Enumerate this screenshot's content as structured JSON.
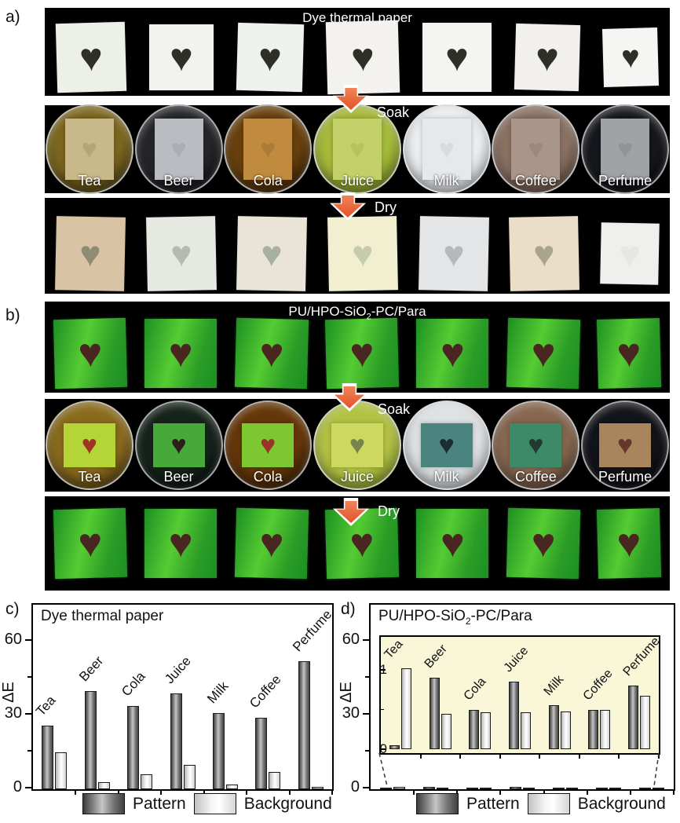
{
  "figure": {
    "panel_a": {
      "label": "a)",
      "title": "Dye thermal paper",
      "soak_label": "Soak",
      "dry_label": "Dry",
      "heart_color": "#2e3028",
      "initial_papers": [
        "#edf0e8",
        "#f2f3f1",
        "#eef2ee",
        "#f3f2ef",
        "#f4f4f2",
        "#f1f0ec",
        "#f5f5f3"
      ],
      "dishes": [
        {
          "label": "Tea",
          "liquid": "#7c671f",
          "liquid_dark": "#352b0c",
          "paper": "#c9b98a",
          "heart": "#b6a577"
        },
        {
          "label": "Beer",
          "liquid": "#26262a",
          "liquid_dark": "#0b0b0d",
          "paper": "#b9bcc0",
          "heart": "#aaadb2"
        },
        {
          "label": "Cola",
          "liquid": "#69400c",
          "liquid_dark": "#2a1804",
          "paper": "#c08b3e",
          "heart": "#ab7c37"
        },
        {
          "label": "Juice",
          "liquid": "#a6bb3a",
          "liquid_dark": "#687e1f",
          "paper": "#c3d06a",
          "heart": "#b4c45a"
        },
        {
          "label": "Milk",
          "liquid": "#eceef0",
          "liquid_dark": "#c6c9cd",
          "paper": "#e6e9ec",
          "heart": "#d8dcdf"
        },
        {
          "label": "Coffee",
          "liquid": "#8b7263",
          "liquid_dark": "#554237",
          "paper": "#a9958a",
          "heart": "#9b887e"
        },
        {
          "label": "Perfume",
          "liquid": "#17181d",
          "liquid_dark": "#050507",
          "paper": "#9fa3a6",
          "heart": "#90949a"
        }
      ],
      "dried_papers": [
        {
          "bg": "#d8c3a4",
          "heart": "#8f8c74"
        },
        {
          "bg": "#e6e8e2",
          "heart": "#b3bbb0"
        },
        {
          "bg": "#eae4d8",
          "heart": "#a8b0a2"
        },
        {
          "bg": "#f1efcf",
          "heart": "#c6cbae"
        },
        {
          "bg": "#e3e5e7",
          "heart": "#b4babc"
        },
        {
          "bg": "#eadec9",
          "heart": "#a9a48e"
        },
        {
          "bg": "#efefed",
          "heart": "#e6e6e4"
        }
      ]
    },
    "panel_b": {
      "label": "b)",
      "title_parts": [
        "PU/HPO-SiO",
        "2",
        "-PC/Para"
      ],
      "soak_label": "Soak",
      "dry_label": "Dry",
      "film_green_light": "#55cc33",
      "film_green_dark": "#1d8f22",
      "heart_color": "#4a2620",
      "dishes": [
        {
          "label": "Tea",
          "liquid": "#8a6b1e",
          "liquid_dark": "#3f300c",
          "film": "#b5d437",
          "heart": "#a03226"
        },
        {
          "label": "Beer",
          "liquid": "#16231a",
          "liquid_dark": "#060a07",
          "film": "#46a93a",
          "heart": "#2f1d1a"
        },
        {
          "label": "Cola",
          "liquid": "#653708",
          "liquid_dark": "#2a1603",
          "film": "#7dc832",
          "heart": "#9c3128"
        },
        {
          "label": "Juice",
          "liquid": "#b3c344",
          "liquid_dark": "#7d8f26",
          "film": "#ccd95e",
          "heart": "#76834c"
        },
        {
          "label": "Milk",
          "liquid": "#dfe2e4",
          "liquid_dark": "#b8bcc0",
          "film": "#49857e",
          "heart": "#1e2b30"
        },
        {
          "label": "Coffee",
          "liquid": "#876750",
          "liquid_dark": "#523d2e",
          "film": "#3c8a68",
          "heart": "#223832"
        },
        {
          "label": "Perfume",
          "liquid": "#131419",
          "liquid_dark": "#040406",
          "film": "#a8855c",
          "heart": "#64362c"
        }
      ]
    },
    "panel_c_label": "c)",
    "panel_d_label": "d)"
  },
  "chart_data": [
    {
      "type": "bar",
      "panel": "c",
      "title": "Dye thermal paper",
      "ylabel": "ΔE",
      "yticks": [
        0,
        30,
        60
      ],
      "ylim": [
        0,
        75
      ],
      "categories": [
        "Tea",
        "Beer",
        "Cola",
        "Juice",
        "Milk",
        "Coffee",
        "Perfume"
      ],
      "series": [
        {
          "name": "Pattern",
          "values": [
            26,
            40,
            34,
            39,
            31,
            29,
            52
          ]
        },
        {
          "name": "Background",
          "values": [
            15,
            3,
            6,
            10,
            2,
            7,
            1
          ]
        }
      ],
      "legend": [
        "Pattern",
        "Background"
      ],
      "legend_position": "bottom"
    },
    {
      "type": "bar",
      "panel": "d",
      "title_parts": [
        "PU/HPO-SiO",
        "2",
        "-PC/Para"
      ],
      "ylabel": "ΔE",
      "yticks": [
        0,
        30,
        60
      ],
      "ylim": [
        0,
        75
      ],
      "categories": [
        "Tea",
        "Beer",
        "Cola",
        "Juice",
        "Milk",
        "Coffee",
        "Perfume"
      ],
      "series": [
        {
          "name": "Pattern",
          "values": [
            0.05,
            0.9,
            0.5,
            0.85,
            0.55,
            0.5,
            0.8
          ]
        },
        {
          "name": "Background",
          "values": [
            1.02,
            0.45,
            0.47,
            0.47,
            0.48,
            0.5,
            0.67
          ]
        }
      ],
      "inset": {
        "background": "#f9f7d8",
        "yticks": [
          0,
          1
        ],
        "ylim": [
          0,
          1.45
        ],
        "note": "magnified view of the same near-zero values"
      },
      "legend": [
        "Pattern",
        "Background"
      ],
      "legend_position": "bottom"
    }
  ]
}
